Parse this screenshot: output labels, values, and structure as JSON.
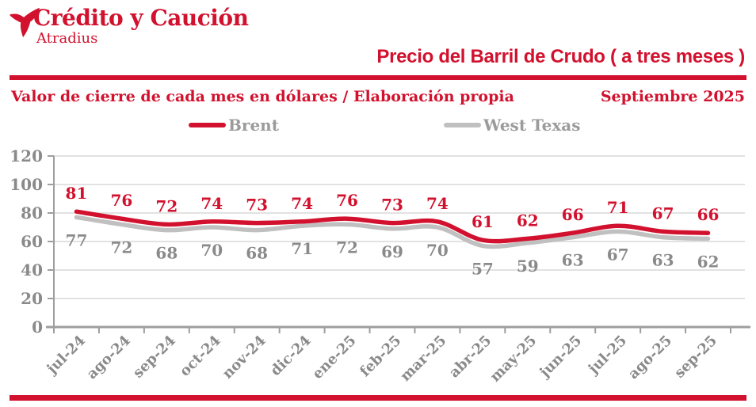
{
  "brand": {
    "logo_text": "Crédito y Caución",
    "logo_subtext": "Atradius"
  },
  "header": {
    "title": "Precio del Barril de Crudo ( a tres meses )",
    "subtitle": "Valor de cierre de cada mes en dólares / Elaboración propia",
    "date": "Septiembre 2025"
  },
  "colors": {
    "red": "#D2112E",
    "gray_line": "#C0C0C0",
    "gray_text": "#8A8A8A",
    "legend_text": "#9B9B9B",
    "grid": "#D8D8D8",
    "axis": "#9E9E9E"
  },
  "chart_data": {
    "type": "line",
    "title": "Precio del Barril de Crudo ( a tres meses )",
    "subtitle": "Valor de cierre de cada mes en dólares / Elaboración propia",
    "categories": [
      "jul-24",
      "ago-24",
      "sep-24",
      "oct-24",
      "nov-24",
      "dic-24",
      "ene-25",
      "feb-25",
      "mar-25",
      "abr-25",
      "may-25",
      "jun-25",
      "jul-25",
      "ago-25",
      "sep-25"
    ],
    "series": [
      {
        "name": "Brent",
        "color": "#D2112E",
        "label_position": "above",
        "values": [
          81,
          76,
          72,
          74,
          73,
          74,
          76,
          73,
          74,
          61,
          62,
          66,
          71,
          67,
          66
        ]
      },
      {
        "name": "West Texas",
        "color": "#C0C0C0",
        "label_position": "below",
        "values": [
          77,
          72,
          68,
          70,
          68,
          71,
          72,
          69,
          70,
          57,
          59,
          63,
          67,
          63,
          62
        ]
      }
    ],
    "ylim": [
      0,
      120
    ],
    "ytick_step": 20,
    "grid": true,
    "smooth": true,
    "legend_position": "top",
    "xlabel": "",
    "ylabel": ""
  }
}
